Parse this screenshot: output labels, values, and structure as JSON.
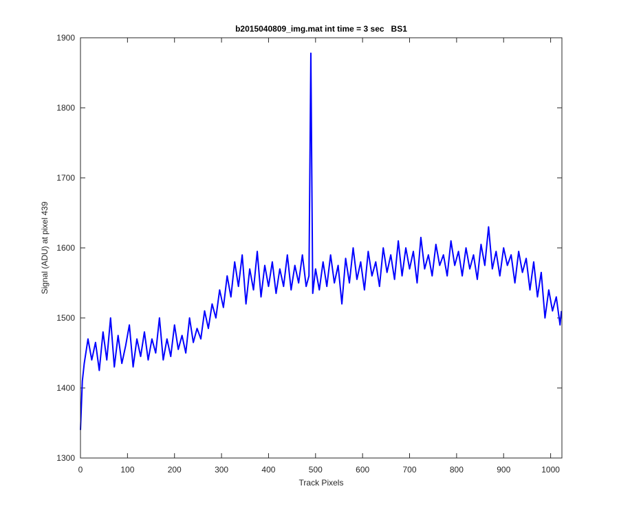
{
  "chart_data": {
    "type": "line",
    "title": "b2015040809_img.mat int time = 3 sec   BS1",
    "xlabel": "Track Pixels",
    "ylabel": "Signal (ADU) at pixel 439",
    "xlim": [
      0,
      1024
    ],
    "ylim": [
      1300,
      1900
    ],
    "xticks": [
      0,
      100,
      200,
      300,
      400,
      500,
      600,
      700,
      800,
      900,
      1000
    ],
    "yticks": [
      1300,
      1400,
      1500,
      1600,
      1700,
      1800,
      1900
    ],
    "grid": false,
    "x": [
      0,
      4,
      8,
      16,
      24,
      32,
      40,
      48,
      56,
      64,
      72,
      80,
      88,
      96,
      104,
      112,
      120,
      128,
      136,
      144,
      152,
      160,
      168,
      176,
      184,
      192,
      200,
      208,
      216,
      224,
      232,
      240,
      248,
      256,
      264,
      272,
      280,
      288,
      296,
      304,
      312,
      320,
      328,
      336,
      344,
      352,
      360,
      368,
      376,
      384,
      392,
      400,
      408,
      416,
      424,
      432,
      440,
      448,
      456,
      464,
      472,
      480,
      486,
      490,
      494,
      500,
      508,
      516,
      524,
      532,
      540,
      548,
      556,
      564,
      572,
      580,
      588,
      596,
      604,
      612,
      620,
      628,
      636,
      644,
      652,
      660,
      668,
      676,
      684,
      692,
      700,
      708,
      716,
      724,
      732,
      740,
      748,
      756,
      764,
      772,
      780,
      788,
      796,
      804,
      812,
      820,
      828,
      836,
      844,
      852,
      860,
      868,
      876,
      884,
      892,
      900,
      908,
      916,
      924,
      932,
      940,
      948,
      956,
      964,
      972,
      980,
      988,
      996,
      1004,
      1012,
      1020,
      1023
    ],
    "series": [
      {
        "color": "#0000ff",
        "values": [
          1340,
          1410,
          1435,
          1470,
          1440,
          1465,
          1425,
          1480,
          1440,
          1500,
          1430,
          1475,
          1435,
          1460,
          1490,
          1430,
          1470,
          1445,
          1480,
          1440,
          1470,
          1450,
          1500,
          1440,
          1470,
          1445,
          1490,
          1455,
          1475,
          1450,
          1500,
          1465,
          1485,
          1470,
          1510,
          1485,
          1520,
          1500,
          1540,
          1515,
          1560,
          1530,
          1580,
          1545,
          1590,
          1520,
          1570,
          1540,
          1595,
          1530,
          1575,
          1545,
          1580,
          1535,
          1570,
          1545,
          1590,
          1540,
          1575,
          1550,
          1590,
          1545,
          1560,
          1878,
          1535,
          1570,
          1540,
          1580,
          1545,
          1590,
          1550,
          1575,
          1520,
          1585,
          1550,
          1600,
          1555,
          1580,
          1540,
          1595,
          1560,
          1580,
          1545,
          1600,
          1565,
          1590,
          1555,
          1610,
          1560,
          1600,
          1570,
          1595,
          1550,
          1615,
          1570,
          1590,
          1560,
          1605,
          1575,
          1590,
          1560,
          1610,
          1575,
          1595,
          1560,
          1600,
          1570,
          1590,
          1555,
          1605,
          1575,
          1630,
          1570,
          1595,
          1560,
          1600,
          1575,
          1590,
          1550,
          1595,
          1565,
          1585,
          1540,
          1580,
          1530,
          1565,
          1500,
          1540,
          1510,
          1530,
          1490,
          1510
        ]
      }
    ]
  }
}
